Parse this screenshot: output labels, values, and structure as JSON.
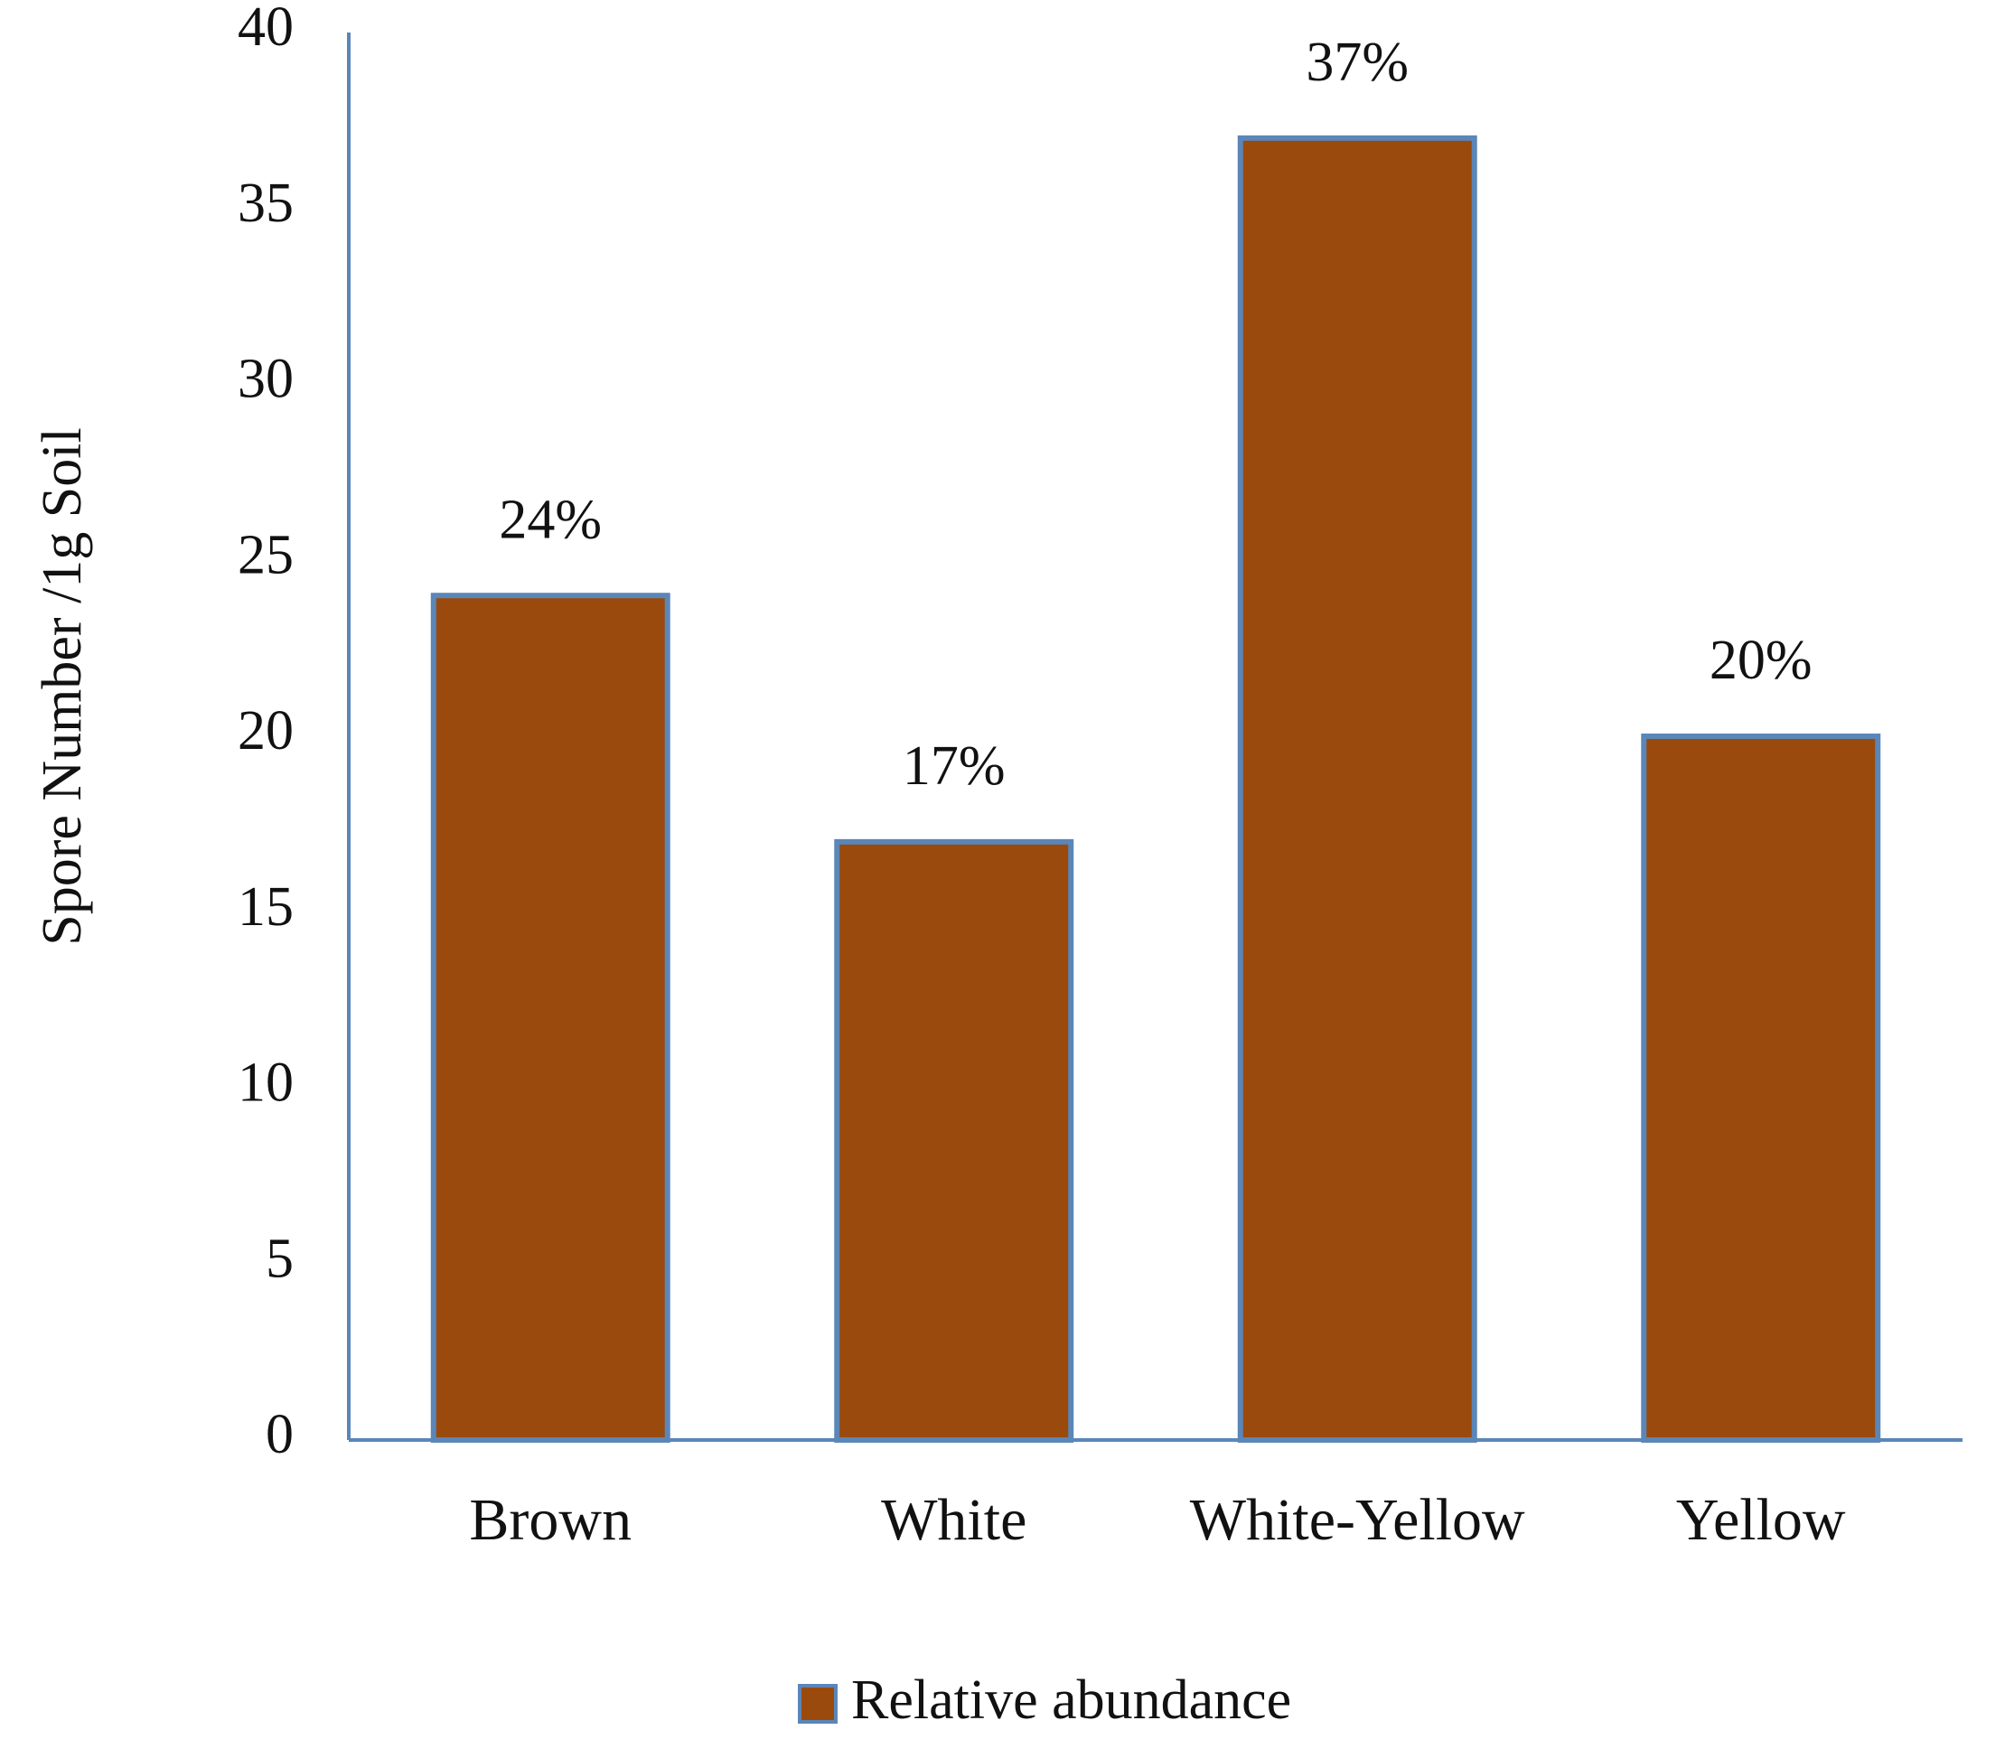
{
  "chart_data": {
    "type": "bar",
    "categories": [
      "Brown",
      "White",
      "White-Yellow",
      "Yellow"
    ],
    "series": [
      {
        "name": "Relative abundance",
        "values": [
          24,
          17,
          37,
          20
        ],
        "data_labels": [
          "24%",
          "17%",
          "37%",
          "20%"
        ]
      }
    ],
    "title": "",
    "xlabel": "",
    "ylabel": "Spore Number /1g Soil",
    "ylim": [
      0,
      40
    ],
    "yticks": [
      0,
      5,
      10,
      15,
      20,
      25,
      30,
      35,
      40
    ],
    "grid": false,
    "legend": "bottom",
    "colors": {
      "bar_fill": "#9a4a0d",
      "bar_stroke": "#5b86b8",
      "axis": "#5b86b8"
    }
  }
}
